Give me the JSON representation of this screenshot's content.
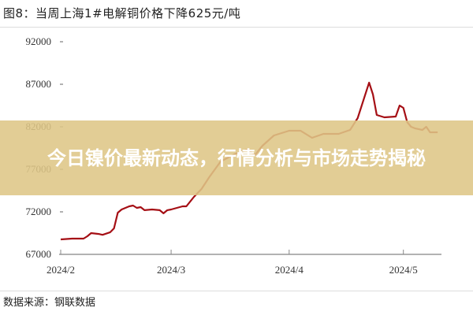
{
  "chart_data": {
    "type": "line",
    "title": "图8：当周上海1#电解铜价格下降625元/吨",
    "xlabel": "",
    "ylabel": "",
    "ylim": [
      67000,
      92000
    ],
    "yticks": [
      "92000",
      "87000",
      "82000",
      "77000",
      "72000",
      "67000"
    ],
    "xticks": [
      {
        "label": "2024/2",
        "date": "2024-02-01"
      },
      {
        "label": "2024/3",
        "date": "2024-03-01"
      },
      {
        "label": "2024/4",
        "date": "2024-04-01"
      },
      {
        "label": "2024/5",
        "date": "2024-05-01"
      }
    ],
    "xlim": [
      "2024-02-01",
      "2024-05-11"
    ],
    "grid": false,
    "line_color": "#a50f15",
    "series": [
      {
        "points": [
          [
            "2024-02-01",
            68760
          ],
          [
            "2024-02-04",
            68850
          ],
          [
            "2024-02-07",
            68850
          ],
          [
            "2024-02-08",
            69130
          ],
          [
            "2024-02-09",
            69500
          ],
          [
            "2024-02-11",
            69400
          ],
          [
            "2024-02-12",
            69300
          ],
          [
            "2024-02-14",
            69600
          ],
          [
            "2024-02-15",
            70060
          ],
          [
            "2024-02-16",
            71900
          ],
          [
            "2024-02-17",
            72280
          ],
          [
            "2024-02-19",
            72650
          ],
          [
            "2024-02-20",
            72740
          ],
          [
            "2024-02-21",
            72460
          ],
          [
            "2024-02-22",
            72560
          ],
          [
            "2024-02-23",
            72190
          ],
          [
            "2024-02-25",
            72280
          ],
          [
            "2024-02-27",
            72190
          ],
          [
            "2024-02-28",
            71820
          ],
          [
            "2024-02-29",
            72190
          ],
          [
            "2024-03-01",
            72280
          ],
          [
            "2024-03-04",
            72650
          ],
          [
            "2024-03-05",
            72650
          ],
          [
            "2024-03-07",
            73760
          ],
          [
            "2024-03-09",
            74690
          ],
          [
            "2024-03-11",
            76070
          ],
          [
            "2024-03-14",
            77930
          ],
          [
            "2024-03-18",
            78850
          ],
          [
            "2024-03-21",
            79320
          ],
          [
            "2024-03-23",
            78670
          ],
          [
            "2024-03-25",
            79780
          ],
          [
            "2024-03-28",
            80980
          ],
          [
            "2024-04-01",
            81540
          ],
          [
            "2024-04-04",
            81540
          ],
          [
            "2024-04-07",
            80700
          ],
          [
            "2024-04-10",
            81170
          ],
          [
            "2024-04-14",
            81170
          ],
          [
            "2024-04-17",
            81630
          ],
          [
            "2024-04-19",
            83020
          ],
          [
            "2024-04-22",
            87190
          ],
          [
            "2024-04-23",
            85800
          ],
          [
            "2024-04-24",
            83390
          ],
          [
            "2024-04-26",
            83110
          ],
          [
            "2024-04-29",
            83200
          ],
          [
            "2024-04-30",
            84500
          ],
          [
            "2024-05-01",
            84220
          ],
          [
            "2024-05-02",
            82560
          ],
          [
            "2024-05-03",
            82000
          ],
          [
            "2024-05-04",
            81820
          ],
          [
            "2024-05-06",
            81630
          ],
          [
            "2024-05-07",
            82000
          ],
          [
            "2024-05-08",
            81350
          ],
          [
            "2024-05-10",
            81350
          ]
        ]
      }
    ]
  },
  "source": "数据来源：钢联数据",
  "banner": {
    "text": "今日镍价最新动态，行情分析与市场走势揭秘",
    "color": "#dec686"
  }
}
